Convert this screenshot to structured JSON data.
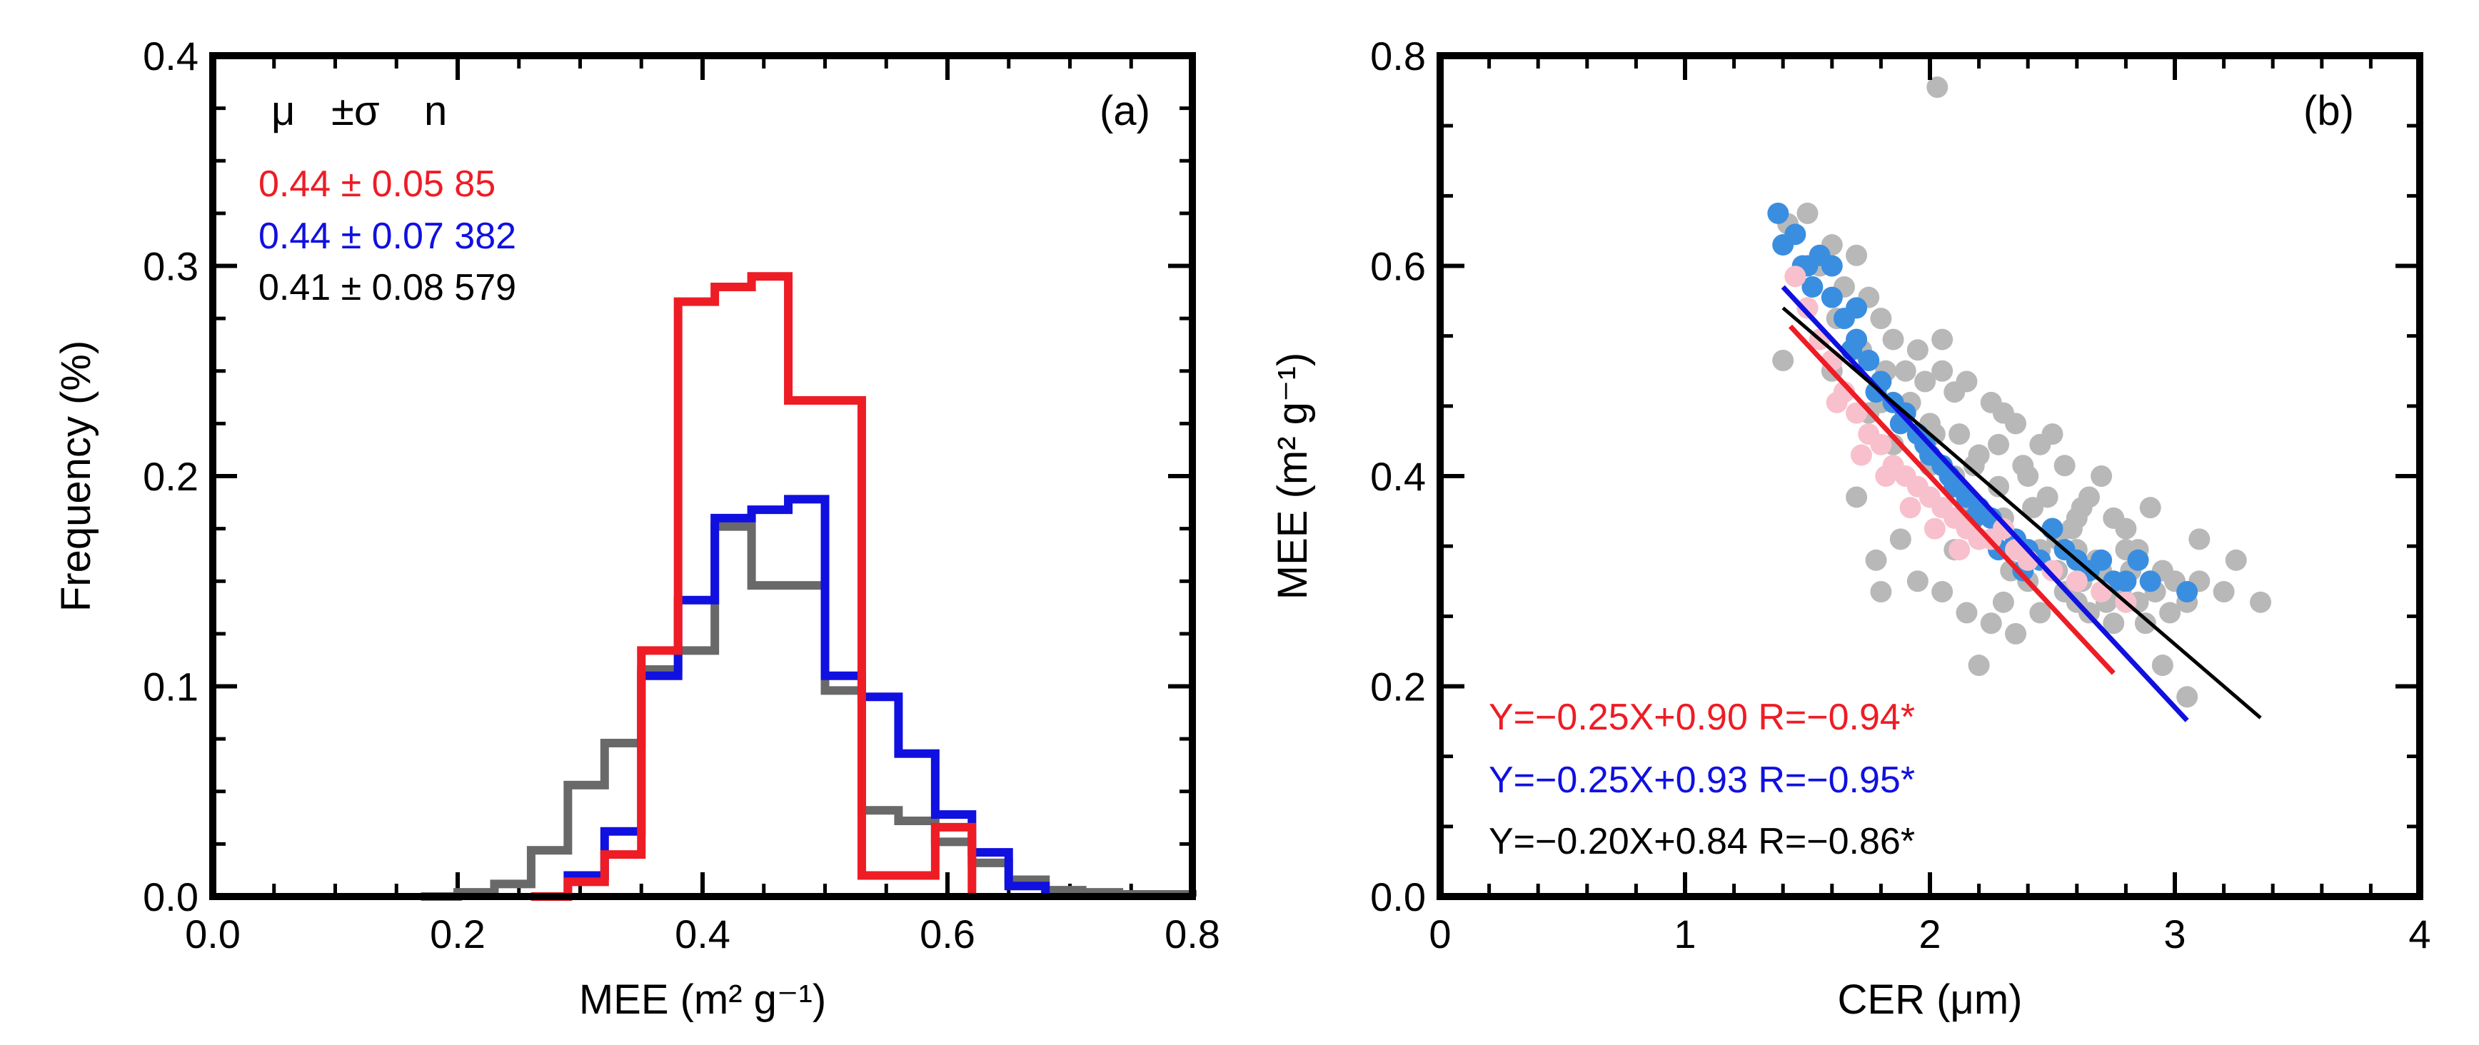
{
  "chart_data": [
    {
      "panel": "(a)",
      "type": "histogram",
      "xlabel": "MEE (m² g⁻¹)",
      "ylabel": "Frequency (%)",
      "xlim": [
        0.0,
        0.8
      ],
      "ylim": [
        0.0,
        0.4
      ],
      "xticks": [
        0.0,
        0.2,
        0.4,
        0.6,
        0.8
      ],
      "xtick_labels": [
        "0.0",
        "0.2",
        "0.4",
        "0.6",
        "0.8"
      ],
      "yticks": [
        0.0,
        0.1,
        0.2,
        0.3,
        0.4
      ],
      "ytick_labels": [
        "0.0",
        "0.1",
        "0.2",
        "0.3",
        "0.4"
      ],
      "legend_header": [
        "μ",
        "±σ",
        "n"
      ],
      "stats": [
        {
          "text": "0.44 ± 0.05 85",
          "color": "#ee1c25"
        },
        {
          "text": "0.44 ± 0.07 382",
          "color": "#1010e0"
        },
        {
          "text": "0.41 ± 0.08 579",
          "color": "#000000"
        }
      ],
      "series": [
        {
          "name": "red",
          "color": "#ee1c25",
          "edges": [
            0.26,
            0.29,
            0.32,
            0.35,
            0.38,
            0.41,
            0.44,
            0.47,
            0.5,
            0.53,
            0.56,
            0.59,
            0.62
          ],
          "values": [
            0.0,
            0.007,
            0.02,
            0.117,
            0.283,
            0.29,
            0.295,
            0.236,
            0.236,
            0.01,
            0.01,
            0.033,
            0.0
          ]
        },
        {
          "name": "blue",
          "color": "#1010e0",
          "edges": [
            0.26,
            0.29,
            0.32,
            0.35,
            0.38,
            0.41,
            0.44,
            0.47,
            0.5,
            0.53,
            0.56,
            0.59,
            0.62,
            0.65,
            0.68
          ],
          "values": [
            0.0,
            0.01,
            0.031,
            0.105,
            0.141,
            0.18,
            0.184,
            0.189,
            0.105,
            0.095,
            0.068,
            0.039,
            0.021,
            0.005,
            0.0
          ]
        },
        {
          "name": "gray",
          "color": "#696969",
          "edges": [
            0.17,
            0.2,
            0.23,
            0.26,
            0.29,
            0.32,
            0.35,
            0.38,
            0.41,
            0.44,
            0.47,
            0.5,
            0.53,
            0.56,
            0.59,
            0.62,
            0.65,
            0.68,
            0.71,
            0.74,
            0.77,
            0.8
          ],
          "values": [
            0.0,
            0.002,
            0.006,
            0.022,
            0.053,
            0.073,
            0.108,
            0.117,
            0.176,
            0.148,
            0.148,
            0.098,
            0.041,
            0.036,
            0.026,
            0.016,
            0.008,
            0.003,
            0.002,
            0.001,
            0.001,
            0.0
          ]
        }
      ]
    },
    {
      "panel": "(b)",
      "type": "scatter",
      "xlabel": "CER (μm)",
      "ylabel": "MEE (m² g⁻¹)",
      "xlim": [
        0,
        4
      ],
      "ylim": [
        0.0,
        0.8
      ],
      "xticks": [
        0,
        1,
        2,
        3,
        4
      ],
      "xtick_labels": [
        "0",
        "1",
        "2",
        "3",
        "4"
      ],
      "yticks": [
        0.0,
        0.2,
        0.4,
        0.6,
        0.8
      ],
      "ytick_labels": [
        "0.0",
        "0.2",
        "0.4",
        "0.6",
        "0.8"
      ],
      "series": [
        {
          "name": "gray points",
          "color": "#b8b8b8",
          "points": [
            [
              2.03,
              0.77
            ],
            [
              1.42,
              0.64
            ],
            [
              1.5,
              0.65
            ],
            [
              1.6,
              0.62
            ],
            [
              1.7,
              0.61
            ],
            [
              1.8,
              0.55
            ],
            [
              1.55,
              0.6
            ],
            [
              1.65,
              0.58
            ],
            [
              1.75,
              0.57
            ],
            [
              1.85,
              0.53
            ],
            [
              1.95,
              0.52
            ],
            [
              2.05,
              0.5
            ],
            [
              2.15,
              0.49
            ],
            [
              2.25,
              0.47
            ],
            [
              2.35,
              0.45
            ],
            [
              2.45,
              0.43
            ],
            [
              2.55,
              0.41
            ],
            [
              2.65,
              0.38
            ],
            [
              2.75,
              0.36
            ],
            [
              2.85,
              0.33
            ],
            [
              2.95,
              0.31
            ],
            [
              3.05,
              0.28
            ],
            [
              3.2,
              0.29
            ],
            [
              3.35,
              0.28
            ],
            [
              3.25,
              0.32
            ],
            [
              3.1,
              0.34
            ],
            [
              2.9,
              0.37
            ],
            [
              2.7,
              0.4
            ],
            [
              2.5,
              0.44
            ],
            [
              2.3,
              0.46
            ],
            [
              2.1,
              0.48
            ],
            [
              1.9,
              0.5
            ],
            [
              1.7,
              0.53
            ],
            [
              1.5,
              0.56
            ],
            [
              1.4,
              0.51
            ],
            [
              1.6,
              0.5
            ],
            [
              1.8,
              0.47
            ],
            [
              2.0,
              0.45
            ],
            [
              2.2,
              0.42
            ],
            [
              2.4,
              0.4
            ],
            [
              2.6,
              0.36
            ],
            [
              2.8,
              0.33
            ],
            [
              3.0,
              0.3
            ],
            [
              2.05,
              0.53
            ],
            [
              1.98,
              0.49
            ],
            [
              2.12,
              0.44
            ],
            [
              2.28,
              0.43
            ],
            [
              2.38,
              0.41
            ],
            [
              2.48,
              0.38
            ],
            [
              2.58,
              0.35
            ],
            [
              2.68,
              0.32
            ],
            [
              2.78,
              0.29
            ],
            [
              2.88,
              0.26
            ],
            [
              2.98,
              0.27
            ],
            [
              1.78,
              0.32
            ],
            [
              1.88,
              0.34
            ],
            [
              1.95,
              0.3
            ],
            [
              2.05,
              0.29
            ],
            [
              2.15,
              0.27
            ],
            [
              2.25,
              0.26
            ],
            [
              2.35,
              0.25
            ],
            [
              2.45,
              0.27
            ],
            [
              2.55,
              0.29
            ],
            [
              2.65,
              0.27
            ],
            [
              2.75,
              0.26
            ],
            [
              2.85,
              0.28
            ],
            [
              2.2,
              0.34
            ],
            [
              2.3,
              0.36
            ],
            [
              2.4,
              0.33
            ],
            [
              2.5,
              0.35
            ],
            [
              2.6,
              0.33
            ],
            [
              2.7,
              0.31
            ],
            [
              2.8,
              0.35
            ],
            [
              2.9,
              0.3
            ],
            [
              2.0,
              0.38
            ],
            [
              2.1,
              0.4
            ],
            [
              1.85,
              0.43
            ],
            [
              1.75,
              0.46
            ],
            [
              1.65,
              0.48
            ],
            [
              2.4,
              0.3
            ],
            [
              2.6,
              0.28
            ],
            [
              2.2,
              0.22
            ],
            [
              2.3,
              0.28
            ],
            [
              2.1,
              0.33
            ],
            [
              3.05,
              0.19
            ],
            [
              2.95,
              0.22
            ],
            [
              1.8,
              0.29
            ],
            [
              1.7,
              0.38
            ],
            [
              2.0,
              0.41
            ],
            [
              2.15,
              0.37
            ],
            [
              2.33,
              0.31
            ],
            [
              2.45,
              0.33
            ],
            [
              2.52,
              0.31
            ],
            [
              2.62,
              0.3
            ],
            [
              2.72,
              0.28
            ],
            [
              2.82,
              0.31
            ],
            [
              2.92,
              0.29
            ],
            [
              3.1,
              0.3
            ],
            [
              1.62,
              0.55
            ],
            [
              1.72,
              0.52
            ],
            [
              1.82,
              0.5
            ],
            [
              1.92,
              0.47
            ],
            [
              2.02,
              0.44
            ],
            [
              2.18,
              0.41
            ],
            [
              2.28,
              0.39
            ],
            [
              2.42,
              0.37
            ],
            [
              2.52,
              0.34
            ],
            [
              2.62,
              0.37
            ]
          ]
        },
        {
          "name": "blue points",
          "color": "#3a8ee0",
          "points": [
            [
              1.38,
              0.65
            ],
            [
              1.4,
              0.62
            ],
            [
              1.45,
              0.63
            ],
            [
              1.5,
              0.6
            ],
            [
              1.55,
              0.61
            ],
            [
              1.6,
              0.57
            ],
            [
              1.65,
              0.55
            ],
            [
              1.7,
              0.53
            ],
            [
              1.75,
              0.51
            ],
            [
              1.8,
              0.49
            ],
            [
              1.85,
              0.47
            ],
            [
              1.9,
              0.46
            ],
            [
              1.95,
              0.44
            ],
            [
              2.0,
              0.42
            ],
            [
              2.05,
              0.41
            ],
            [
              2.1,
              0.39
            ],
            [
              2.15,
              0.38
            ],
            [
              2.2,
              0.37
            ],
            [
              2.25,
              0.36
            ],
            [
              2.3,
              0.35
            ],
            [
              2.35,
              0.34
            ],
            [
              2.4,
              0.33
            ],
            [
              2.45,
              0.32
            ],
            [
              2.5,
              0.35
            ],
            [
              2.55,
              0.33
            ],
            [
              2.6,
              0.32
            ],
            [
              2.65,
              0.31
            ],
            [
              2.7,
              0.32
            ],
            [
              2.75,
              0.3
            ],
            [
              2.85,
              0.32
            ],
            [
              2.9,
              0.3
            ],
            [
              3.05,
              0.29
            ],
            [
              2.8,
              0.3
            ],
            [
              1.6,
              0.6
            ],
            [
              1.7,
              0.56
            ],
            [
              1.52,
              0.58
            ],
            [
              1.68,
              0.52
            ],
            [
              1.78,
              0.48
            ],
            [
              1.88,
              0.45
            ],
            [
              1.98,
              0.43
            ],
            [
              2.08,
              0.4
            ],
            [
              2.18,
              0.36
            ],
            [
              2.28,
              0.33
            ],
            [
              2.38,
              0.31
            ],
            [
              1.48,
              0.6
            ]
          ]
        },
        {
          "name": "pink points",
          "color": "#f8c0cc",
          "points": [
            [
              1.45,
              0.59
            ],
            [
              1.5,
              0.56
            ],
            [
              1.55,
              0.53
            ],
            [
              1.6,
              0.51
            ],
            [
              1.65,
              0.48
            ],
            [
              1.7,
              0.46
            ],
            [
              1.75,
              0.44
            ],
            [
              1.8,
              0.43
            ],
            [
              1.85,
              0.41
            ],
            [
              1.9,
              0.4
            ],
            [
              1.95,
              0.39
            ],
            [
              2.0,
              0.38
            ],
            [
              2.05,
              0.37
            ],
            [
              2.1,
              0.36
            ],
            [
              2.15,
              0.35
            ],
            [
              2.2,
              0.34
            ],
            [
              2.25,
              0.34
            ],
            [
              2.3,
              0.35
            ],
            [
              2.35,
              0.33
            ],
            [
              2.4,
              0.32
            ],
            [
              2.5,
              0.31
            ],
            [
              2.6,
              0.3
            ],
            [
              2.7,
              0.29
            ],
            [
              2.8,
              0.28
            ],
            [
              1.92,
              0.37
            ],
            [
              2.02,
              0.35
            ],
            [
              2.12,
              0.33
            ],
            [
              1.72,
              0.42
            ],
            [
              1.62,
              0.47
            ],
            [
              1.82,
              0.4
            ]
          ]
        }
      ],
      "fits": [
        {
          "text": "Y=−0.25X+0.90 R=−0.94*",
          "color": "#ee1c25",
          "x": [
            1.43,
            2.75
          ]
        },
        {
          "text": "Y=−0.25X+0.93 R=−0.95*",
          "color": "#1010e0",
          "x": [
            1.4,
            3.05
          ]
        },
        {
          "text": "Y=−0.20X+0.84 R=−0.86*",
          "color": "#000000",
          "x": [
            1.4,
            3.35
          ]
        }
      ],
      "fit_params": [
        [
          -0.25,
          0.9
        ],
        [
          -0.25,
          0.93
        ],
        [
          -0.2,
          0.84
        ]
      ]
    }
  ]
}
